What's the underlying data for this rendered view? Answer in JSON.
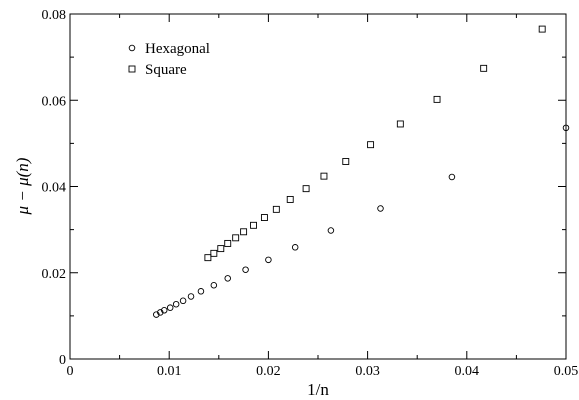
{
  "chart_data": {
    "type": "scatter",
    "xlabel": "1/n",
    "ylabel": "μ − μ(n)",
    "xlim": [
      0,
      0.05
    ],
    "ylim": [
      0,
      0.08
    ],
    "x_ticks": [
      "0",
      "0.01",
      "0.02",
      "0.03",
      "0.04",
      "0.05"
    ],
    "y_ticks": [
      "0",
      "0.02",
      "0.04",
      "0.06",
      "0.08"
    ],
    "grid": false,
    "legend_position": "top-left",
    "series": [
      {
        "name": "Hexagonal",
        "marker": "circle",
        "points": [
          [
            0.0087,
            0.0103
          ],
          [
            0.0091,
            0.0108
          ],
          [
            0.0095,
            0.0113
          ],
          [
            0.0101,
            0.0119
          ],
          [
            0.0107,
            0.0127
          ],
          [
            0.0114,
            0.0135
          ],
          [
            0.0122,
            0.0145
          ],
          [
            0.0132,
            0.0157
          ],
          [
            0.0145,
            0.0171
          ],
          [
            0.0159,
            0.0187
          ],
          [
            0.0177,
            0.0207
          ],
          [
            0.02,
            0.023
          ],
          [
            0.0227,
            0.0259
          ],
          [
            0.0263,
            0.0298
          ],
          [
            0.0313,
            0.0349
          ],
          [
            0.0385,
            0.0422
          ],
          [
            0.05,
            0.0536
          ]
        ]
      },
      {
        "name": "Square",
        "marker": "square",
        "points": [
          [
            0.0139,
            0.0235
          ],
          [
            0.0145,
            0.0245
          ],
          [
            0.0152,
            0.0256
          ],
          [
            0.0159,
            0.0268
          ],
          [
            0.0167,
            0.0281
          ],
          [
            0.0175,
            0.0295
          ],
          [
            0.0185,
            0.031
          ],
          [
            0.0196,
            0.0328
          ],
          [
            0.0208,
            0.0347
          ],
          [
            0.0222,
            0.037
          ],
          [
            0.0238,
            0.0395
          ],
          [
            0.0256,
            0.0424
          ],
          [
            0.0278,
            0.0458
          ],
          [
            0.0303,
            0.0497
          ],
          [
            0.0333,
            0.0545
          ],
          [
            0.037,
            0.0602
          ],
          [
            0.0417,
            0.0674
          ],
          [
            0.0476,
            0.0765
          ]
        ]
      }
    ]
  }
}
